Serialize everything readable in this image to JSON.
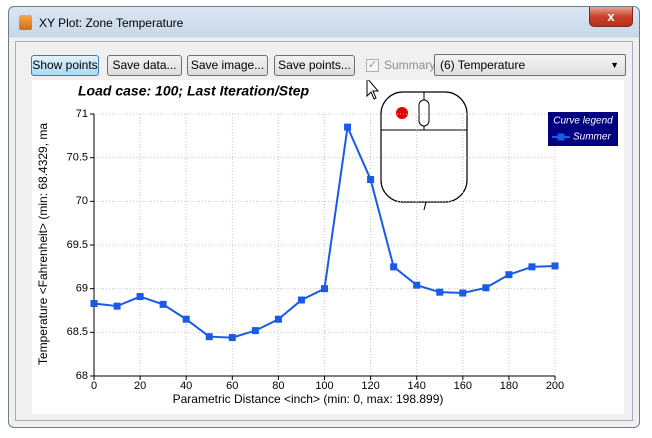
{
  "window": {
    "title": "XY Plot: Zone Temperature",
    "close": "x"
  },
  "toolbar": {
    "buttons": [
      "Show points",
      "Save data...",
      "Save image...",
      "Save points..."
    ],
    "summary": "Summary",
    "summary_checked": true,
    "dropdown": "(6) Temperature"
  },
  "chart_data": {
    "type": "line",
    "title": "Load case: 100; Last Iteration/Step",
    "x_label": "Parametric Distance <inch> (min: 0, max: 198.899)",
    "y_label": "Temperature <Fahrenheit> (min: 68.4329, ma",
    "x": [
      0,
      10,
      20,
      30,
      40,
      50,
      60,
      70,
      80,
      90,
      100,
      110,
      120,
      130,
      140,
      150,
      160,
      170,
      180,
      190,
      200
    ],
    "series": [
      {
        "name": "Summer",
        "color": "#1a5ae6",
        "values": [
          68.83,
          68.8,
          68.91,
          68.82,
          68.65,
          68.45,
          68.44,
          68.52,
          68.65,
          68.87,
          69.0,
          70.85,
          70.25,
          69.25,
          69.04,
          68.96,
          68.95,
          69.01,
          69.16,
          69.25,
          69.26
        ]
      }
    ],
    "xlim": [
      0,
      200
    ],
    "xticks": [
      0,
      20,
      40,
      60,
      80,
      100,
      120,
      140,
      160,
      180,
      200
    ],
    "ylim": [
      68,
      71
    ],
    "yticks": [
      68,
      68.5,
      69,
      69.5,
      70,
      70.5,
      71
    ],
    "grid": true,
    "legend": "upper right",
    "legend_title": "Curve legend"
  }
}
